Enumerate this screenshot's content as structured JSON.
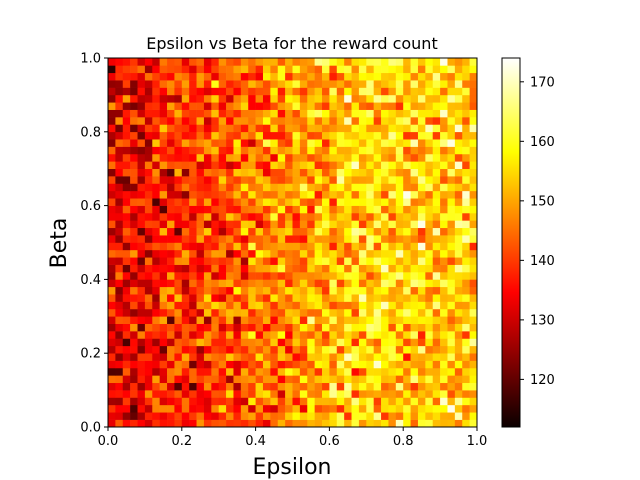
{
  "chart_data": {
    "type": "heatmap",
    "title": "Epsilon vs Beta for the reward count",
    "xlabel": "Epsilon",
    "ylabel": "Beta",
    "xlim": [
      0,
      1
    ],
    "ylim": [
      0,
      1
    ],
    "x_ticks": [
      "0.0",
      "0.2",
      "0.4",
      "0.6",
      "0.8",
      "1.0"
    ],
    "y_ticks": [
      "0.0",
      "0.2",
      "0.4",
      "0.6",
      "0.8",
      "1.0"
    ],
    "grid": false,
    "colormap": "hot",
    "colorbar": {
      "vmin": 112,
      "vmax": 174,
      "ticks": [
        "120",
        "130",
        "140",
        "150",
        "160",
        "170"
      ]
    },
    "bins": {
      "x": 50,
      "y": 50
    },
    "note_values": "cell values range roughly 112-174; lower values concentrated at low Epsilon, higher values around Epsilon 0.6-0.9"
  }
}
